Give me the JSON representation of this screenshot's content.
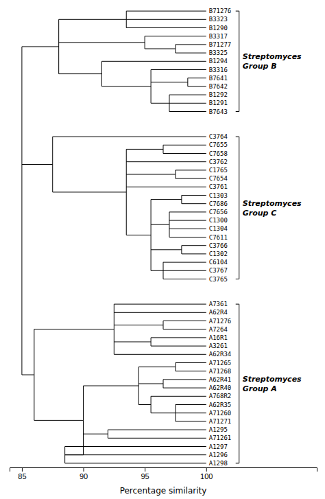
{
  "chart_data": {
    "type": "dendrogram",
    "title": "",
    "x_label": "Percentage similarity",
    "xlim": [
      84.0,
      109.0
    ],
    "xticks": [
      85,
      90,
      95,
      100
    ],
    "tick_labels": "x",
    "color": "black",
    "leaf_similarity": 100.0,
    "tree": {
      "sim": 85.0,
      "children": [
        {
          "sim": 88.0,
          "label": "Streptomyces\nGroup B",
          "children": [
            {
              "sim": 93.5,
              "children": [
                {
                  "name": "B71276"
                },
                {
                  "name": "B3323"
                },
                {
                  "name": "B1290"
                }
              ]
            },
            {
              "sim": 95.0,
              "children": [
                {
                  "name": "B3317"
                },
                {
                  "sim": 97.5,
                  "children": [
                    {
                      "name": "B71277"
                    },
                    {
                      "name": "B3325"
                    }
                  ]
                }
              ]
            },
            {
              "sim": 91.5,
              "children": [
                {
                  "name": "B1294"
                },
                {
                  "sim": 95.5,
                  "children": [
                    {
                      "name": "B3316"
                    },
                    {
                      "sim": 98.5,
                      "children": [
                        {
                          "name": "B7641"
                        },
                        {
                          "name": "B7642"
                        }
                      ]
                    },
                    {
                      "sim": 97.0,
                      "children": [
                        {
                          "name": "B1292"
                        },
                        {
                          "name": "B1291"
                        },
                        {
                          "name": "B7643"
                        }
                      ]
                    }
                  ]
                }
              ]
            }
          ]
        },
        {
          "sim": 87.5,
          "label": "Streptomyces\nGroup C",
          "children": [
            {
              "name": "C3764"
            },
            {
              "sim": 93.5,
              "children": [
                {
                  "sim": 96.5,
                  "children": [
                    {
                      "name": "C7655"
                    },
                    {
                      "name": "C7658"
                    }
                  ]
                },
                {
                  "name": "C3762"
                },
                {
                  "sim": 97.5,
                  "children": [
                    {
                      "name": "C1765"
                    },
                    {
                      "name": "C7654"
                    }
                  ]
                },
                {
                  "name": "C3761"
                },
                {
                  "sim": 95.5,
                  "children": [
                    {
                      "sim": 98.0,
                      "children": [
                        {
                          "name": "C1303"
                        },
                        {
                          "name": "C7686"
                        }
                      ]
                    },
                    {
                      "sim": 97.0,
                      "children": [
                        {
                          "name": "C7656"
                        },
                        {
                          "name": "C1300"
                        },
                        {
                          "name": "C1304"
                        },
                        {
                          "name": "C7611"
                        }
                      ]
                    },
                    {
                      "sim": 98.0,
                      "children": [
                        {
                          "name": "C3766"
                        },
                        {
                          "name": "C1302"
                        }
                      ]
                    },
                    {
                      "sim": 96.5,
                      "children": [
                        {
                          "name": "C6104"
                        },
                        {
                          "name": "C3767"
                        },
                        {
                          "name": "C3765"
                        }
                      ]
                    }
                  ]
                }
              ]
            }
          ]
        },
        {
          "sim": 86.0,
          "label": "Streptomyces\nGroup A",
          "children": [
            {
              "sim": 92.5,
              "children": [
                {
                  "name": "A7361"
                },
                {
                  "name": "A62R4"
                },
                {
                  "sim": 96.5,
                  "children": [
                    {
                      "name": "A71276"
                    },
                    {
                      "name": "A7264"
                    }
                  ]
                },
                {
                  "sim": 95.5,
                  "children": [
                    {
                      "name": "A16R1"
                    },
                    {
                      "name": "A3261"
                    }
                  ]
                },
                {
                  "name": "A62R34"
                }
              ]
            },
            {
              "sim": 90.0,
              "children": [
                {
                  "sim": 94.5,
                  "children": [
                    {
                      "sim": 97.5,
                      "children": [
                        {
                          "name": "A71265"
                        },
                        {
                          "name": "A71268"
                        }
                      ]
                    },
                    {
                      "sim": 96.5,
                      "children": [
                        {
                          "name": "A62R41"
                        },
                        {
                          "name": "A62R40"
                        }
                      ]
                    },
                    {
                      "sim": 95.5,
                      "children": [
                        {
                          "name": "A768R2"
                        },
                        {
                          "sim": 97.5,
                          "children": [
                            {
                              "name": "A62R35"
                            },
                            {
                              "name": "A71260"
                            },
                            {
                              "name": "A71271"
                            }
                          ]
                        }
                      ]
                    }
                  ]
                },
                {
                  "sim": 92.0,
                  "children": [
                    {
                      "name": "A1295"
                    },
                    {
                      "name": "A71261"
                    }
                  ]
                },
                {
                  "sim": 88.5,
                  "children": [
                    {
                      "name": "A1297"
                    },
                    {
                      "name": "A1296"
                    },
                    {
                      "name": "A1298"
                    }
                  ]
                }
              ]
            }
          ]
        }
      ]
    }
  }
}
